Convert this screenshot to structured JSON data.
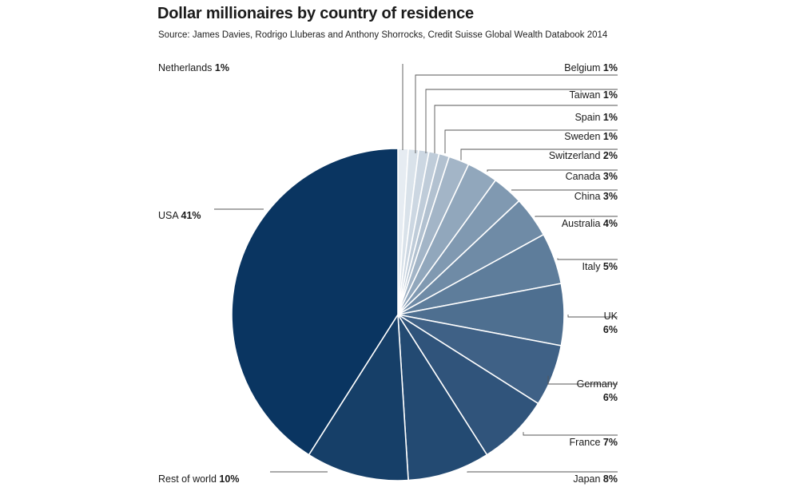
{
  "chart_title": "Dollar millionaires by country of residence",
  "source": "Source: James Davies, Rodrigo Lluberas and Anthony Shorrocks, Credit Suisse Global Wealth Databook 2014",
  "chart_data": {
    "type": "pie",
    "title": "Dollar millionaires by country of residence",
    "unit": "%",
    "slices": [
      {
        "name": "Netherlands",
        "label": "1%",
        "value": 1,
        "color": "#e6ecf2"
      },
      {
        "name": "Belgium",
        "label": "1%",
        "value": 1,
        "color": "#d9e2ea"
      },
      {
        "name": "Taiwan",
        "label": "1%",
        "value": 1,
        "color": "#ccd7e2"
      },
      {
        "name": "Spain",
        "label": "1%",
        "value": 1,
        "color": "#bfccd9"
      },
      {
        "name": "Sweden",
        "label": "1%",
        "value": 1,
        "color": "#b2c1d0"
      },
      {
        "name": "Switzerland",
        "label": "2%",
        "value": 2,
        "color": "#a3b5c7"
      },
      {
        "name": "Canada",
        "label": "3%",
        "value": 3,
        "color": "#91a7bc"
      },
      {
        "name": "China",
        "label": "3%",
        "value": 3,
        "color": "#8099b1"
      },
      {
        "name": "Australia",
        "label": "4%",
        "value": 4,
        "color": "#6f8ba6"
      },
      {
        "name": "Italy",
        "label": "5%",
        "value": 5,
        "color": "#5e7d9b"
      },
      {
        "name": "UK",
        "label": "6%",
        "value": 6,
        "color": "#4e6f90"
      },
      {
        "name": "Germany",
        "label": "6%",
        "value": 6,
        "color": "#3f6186"
      },
      {
        "name": "France",
        "label": "7%",
        "value": 7,
        "color": "#30547b"
      },
      {
        "name": "Japan",
        "label": "8%",
        "value": 8,
        "color": "#234a72"
      },
      {
        "name": "Rest of world",
        "label": "10%",
        "value": 10,
        "color": "#163f68"
      },
      {
        "name": "USA",
        "label": "41%",
        "value": 41,
        "color": "#0a3561"
      }
    ]
  }
}
